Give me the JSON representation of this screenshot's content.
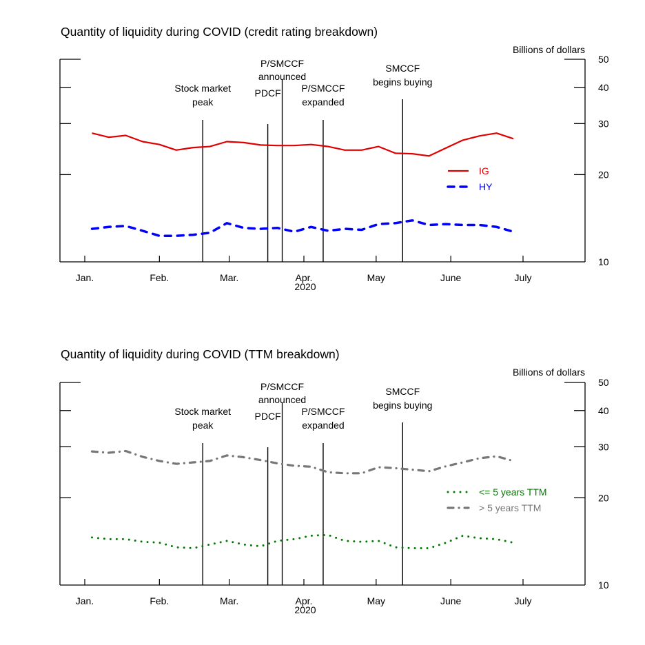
{
  "chart_data": [
    {
      "type": "line",
      "title": "Quantity of liquidity during COVID (credit rating breakdown)",
      "ylabel": "Billions of dollars",
      "xlabel": "2020",
      "yscale": "log",
      "ylim": [
        10,
        50
      ],
      "yticks": [
        10,
        20,
        30,
        40,
        50
      ],
      "xlim_days": [
        -8,
        205
      ],
      "xticks": [
        {
          "label": "Jan.",
          "day": 0
        },
        {
          "label": "Feb.",
          "day": 31
        },
        {
          "label": "Mar.",
          "day": 60
        },
        {
          "label": "Apr.",
          "day": 91
        },
        {
          "label": "May",
          "day": 121
        },
        {
          "label": "June",
          "day": 152
        },
        {
          "label": "July",
          "day": 182
        }
      ],
      "year_label": "2020",
      "events": [
        {
          "label": [
            "Stock market",
            "peak"
          ],
          "day": 49
        },
        {
          "label": [
            "PDCF"
          ],
          "day": 76
        },
        {
          "label": [
            "P/SMCCF",
            "announced"
          ],
          "day": 82
        },
        {
          "label": [
            "P/SMCCF",
            "expanded"
          ],
          "day": 99
        },
        {
          "label": [
            "SMCCF",
            "begins buying"
          ],
          "day": 132
        }
      ],
      "legend_position": "right-middle",
      "series": [
        {
          "name": "IG",
          "color": "#e00000",
          "style": "solid",
          "x_days": [
            3,
            10,
            17,
            24,
            31,
            38,
            45,
            52,
            59,
            66,
            73,
            80,
            87,
            94,
            101,
            108,
            115,
            122,
            129,
            136,
            143,
            150,
            157,
            164,
            171,
            178
          ],
          "values": [
            27.8,
            26.9,
            27.3,
            26.0,
            25.4,
            24.3,
            24.8,
            25.0,
            26.0,
            25.8,
            25.3,
            25.2,
            25.2,
            25.4,
            25.0,
            24.3,
            24.3,
            25.0,
            23.7,
            23.6,
            23.2,
            24.7,
            26.3,
            27.2,
            27.8,
            26.6
          ]
        },
        {
          "name": "HY",
          "color": "#0000ff",
          "style": "dashed",
          "x_days": [
            3,
            10,
            17,
            24,
            31,
            38,
            45,
            52,
            59,
            66,
            73,
            80,
            87,
            94,
            101,
            108,
            115,
            122,
            129,
            136,
            143,
            150,
            157,
            164,
            171,
            178
          ],
          "values": [
            13.0,
            13.2,
            13.3,
            12.8,
            12.3,
            12.3,
            12.4,
            12.6,
            13.6,
            13.1,
            13.0,
            13.1,
            12.7,
            13.2,
            12.8,
            13.0,
            12.9,
            13.5,
            13.6,
            13.9,
            13.4,
            13.5,
            13.4,
            13.4,
            13.2,
            12.7
          ]
        }
      ]
    },
    {
      "type": "line",
      "title": "Quantity of liquidity during COVID (TTM breakdown)",
      "ylabel": "Billions of dollars",
      "xlabel": "2020",
      "yscale": "log",
      "ylim": [
        10,
        50
      ],
      "yticks": [
        10,
        20,
        30,
        40,
        50
      ],
      "xlim_days": [
        -8,
        205
      ],
      "xticks": [
        {
          "label": "Jan.",
          "day": 0
        },
        {
          "label": "Feb.",
          "day": 31
        },
        {
          "label": "Mar.",
          "day": 60
        },
        {
          "label": "Apr.",
          "day": 91
        },
        {
          "label": "May",
          "day": 121
        },
        {
          "label": "June",
          "day": 152
        },
        {
          "label": "July",
          "day": 182
        }
      ],
      "year_label": "2020",
      "events": [
        {
          "label": [
            "Stock market",
            "peak"
          ],
          "day": 49
        },
        {
          "label": [
            "PDCF"
          ],
          "day": 76
        },
        {
          "label": [
            "P/SMCCF",
            "announced"
          ],
          "day": 82
        },
        {
          "label": [
            "P/SMCCF",
            "expanded"
          ],
          "day": 99
        },
        {
          "label": [
            "SMCCF",
            "begins buying"
          ],
          "day": 132
        }
      ],
      "legend_position": "right-middle",
      "series": [
        {
          "name": "<= 5 years TTM",
          "color": "#007a00",
          "style": "dotted",
          "x_days": [
            3,
            10,
            17,
            24,
            31,
            38,
            45,
            52,
            59,
            66,
            73,
            80,
            87,
            94,
            101,
            108,
            115,
            122,
            129,
            136,
            143,
            150,
            157,
            164,
            171,
            178
          ],
          "values": [
            14.6,
            14.4,
            14.4,
            14.1,
            14.0,
            13.5,
            13.4,
            13.8,
            14.2,
            13.8,
            13.6,
            14.2,
            14.4,
            14.8,
            14.9,
            14.2,
            14.1,
            14.2,
            13.5,
            13.4,
            13.4,
            14.0,
            14.8,
            14.5,
            14.4,
            14.0
          ]
        },
        {
          "name": "> 5 years TTM",
          "color": "#777777",
          "style": "dashdot",
          "x_days": [
            3,
            10,
            17,
            24,
            31,
            38,
            45,
            52,
            59,
            66,
            73,
            80,
            87,
            94,
            101,
            108,
            115,
            122,
            129,
            136,
            143,
            150,
            157,
            164,
            171,
            178
          ],
          "values": [
            28.9,
            28.6,
            29.0,
            27.7,
            26.8,
            26.2,
            26.5,
            26.8,
            28.0,
            27.6,
            27.0,
            26.3,
            25.8,
            25.6,
            24.5,
            24.3,
            24.3,
            25.5,
            25.3,
            25.0,
            24.7,
            25.7,
            26.5,
            27.4,
            27.8,
            26.8
          ]
        }
      ]
    }
  ]
}
